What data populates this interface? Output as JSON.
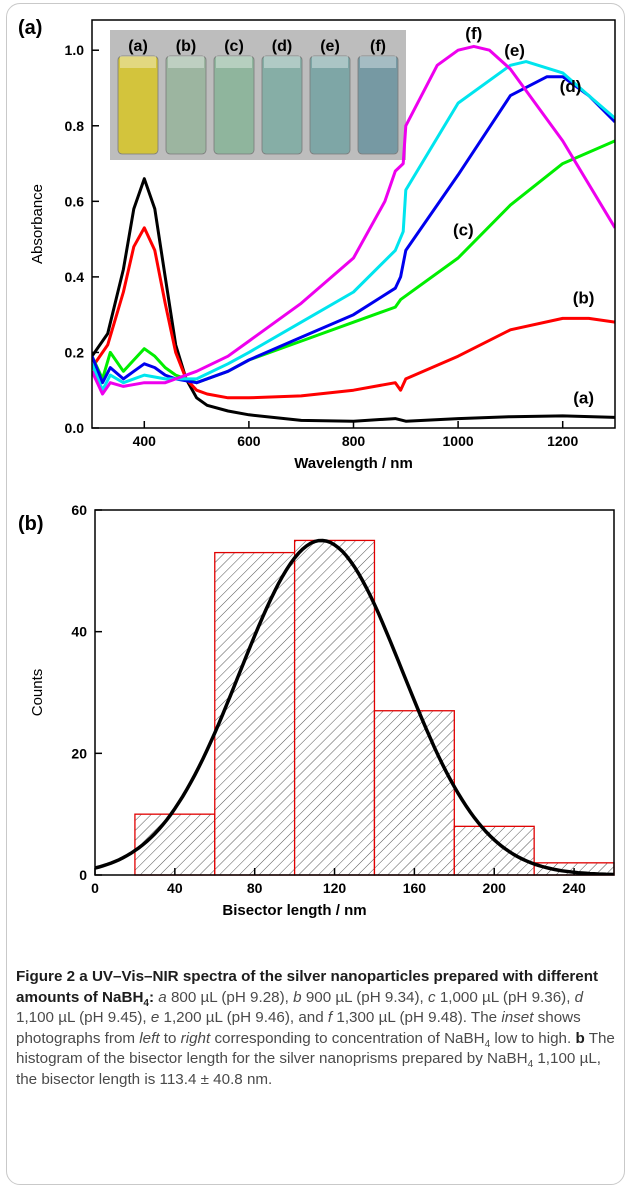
{
  "chart_data": [
    {
      "type": "line",
      "panel_label": "(a)",
      "xlabel": "Wavelength / nm",
      "ylabel": "Absorbance",
      "xlim": [
        300,
        1300
      ],
      "ylim": [
        0,
        1.08
      ],
      "xticks": [
        "400",
        "600",
        "800",
        "1000",
        "1200"
      ],
      "yticks": [
        "0.0",
        "0.2",
        "0.4",
        "0.6",
        "0.8",
        "1.0"
      ],
      "grid": false,
      "series": [
        {
          "name": "(a)",
          "color": "#000000",
          "label_x": 1240,
          "label_y": 0.065,
          "x": [
            300,
            330,
            360,
            380,
            400,
            420,
            440,
            460,
            480,
            500,
            520,
            560,
            600,
            700,
            800,
            880,
            900,
            1000,
            1100,
            1200,
            1300
          ],
          "y": [
            0.19,
            0.25,
            0.42,
            0.58,
            0.66,
            0.58,
            0.4,
            0.22,
            0.13,
            0.08,
            0.06,
            0.045,
            0.035,
            0.02,
            0.018,
            0.025,
            0.018,
            0.025,
            0.03,
            0.032,
            0.028
          ]
        },
        {
          "name": "(b)",
          "color": "#ff0000",
          "label_x": 1240,
          "label_y": 0.33,
          "x": [
            300,
            330,
            360,
            380,
            400,
            420,
            440,
            460,
            480,
            500,
            520,
            560,
            600,
            700,
            800,
            880,
            890,
            900,
            1000,
            1100,
            1200,
            1250,
            1300
          ],
          "y": [
            0.16,
            0.22,
            0.36,
            0.48,
            0.53,
            0.47,
            0.33,
            0.2,
            0.13,
            0.1,
            0.09,
            0.08,
            0.08,
            0.085,
            0.1,
            0.12,
            0.1,
            0.13,
            0.19,
            0.26,
            0.29,
            0.29,
            0.28
          ]
        },
        {
          "name": "(c)",
          "color": "#00ee00",
          "label_x": 1010,
          "label_y": 0.51,
          "x": [
            300,
            320,
            335,
            360,
            380,
            400,
            420,
            440,
            460,
            500,
            560,
            600,
            700,
            800,
            880,
            890,
            900,
            1000,
            1100,
            1200,
            1300
          ],
          "y": [
            0.19,
            0.13,
            0.2,
            0.15,
            0.18,
            0.21,
            0.19,
            0.16,
            0.14,
            0.12,
            0.15,
            0.18,
            0.23,
            0.28,
            0.32,
            0.34,
            0.35,
            0.45,
            0.59,
            0.7,
            0.76
          ]
        },
        {
          "name": "(d)",
          "color": "#0000ee",
          "label_x": 1215,
          "label_y": 0.89,
          "x": [
            300,
            320,
            335,
            360,
            380,
            400,
            420,
            440,
            460,
            500,
            560,
            600,
            700,
            800,
            880,
            890,
            900,
            1000,
            1100,
            1170,
            1200,
            1250,
            1300
          ],
          "y": [
            0.19,
            0.12,
            0.16,
            0.13,
            0.15,
            0.17,
            0.16,
            0.14,
            0.13,
            0.12,
            0.15,
            0.18,
            0.24,
            0.3,
            0.37,
            0.4,
            0.47,
            0.67,
            0.88,
            0.93,
            0.93,
            0.88,
            0.81
          ]
        },
        {
          "name": "(e)",
          "color": "#00e5ee",
          "label_x": 1108,
          "label_y": 0.985,
          "x": [
            300,
            320,
            335,
            360,
            400,
            440,
            460,
            500,
            560,
            600,
            700,
            800,
            880,
            895,
            900,
            1000,
            1100,
            1130,
            1200,
            1250,
            1300
          ],
          "y": [
            0.17,
            0.1,
            0.14,
            0.12,
            0.14,
            0.13,
            0.13,
            0.13,
            0.17,
            0.2,
            0.28,
            0.36,
            0.47,
            0.52,
            0.63,
            0.86,
            0.96,
            0.97,
            0.94,
            0.88,
            0.82
          ]
        },
        {
          "name": "(f)",
          "color": "#ee00ee",
          "label_x": 1030,
          "label_y": 1.03,
          "x": [
            300,
            320,
            335,
            360,
            400,
            440,
            460,
            500,
            560,
            600,
            700,
            800,
            860,
            880,
            895,
            900,
            960,
            1000,
            1030,
            1060,
            1100,
            1200,
            1300
          ],
          "y": [
            0.15,
            0.09,
            0.12,
            0.11,
            0.12,
            0.12,
            0.13,
            0.15,
            0.19,
            0.23,
            0.33,
            0.45,
            0.6,
            0.68,
            0.7,
            0.8,
            0.96,
            1.0,
            1.01,
            1.0,
            0.95,
            0.76,
            0.53
          ]
        }
      ],
      "inset": {
        "labels": [
          "(a)",
          "(b)",
          "(c)",
          "(d)",
          "(e)",
          "(f)"
        ],
        "vial_colors": [
          "#d3c43c",
          "#9cb5a0",
          "#8fb59d",
          "#86aea6",
          "#7ea6a6",
          "#7699a3"
        ]
      }
    },
    {
      "type": "bar",
      "panel_label": "(b)",
      "xlabel": "Bisector length / nm",
      "ylabel": "Counts",
      "xlim": [
        0,
        260
      ],
      "ylim": [
        0,
        60
      ],
      "xticks": [
        "0",
        "40",
        "80",
        "120",
        "160",
        "200",
        "240"
      ],
      "yticks": [
        "0",
        "20",
        "40",
        "60"
      ],
      "bins": [
        [
          20,
          60
        ],
        [
          60,
          100
        ],
        [
          100,
          140
        ],
        [
          140,
          180
        ],
        [
          180,
          220
        ],
        [
          220,
          260
        ]
      ],
      "values": [
        10,
        53,
        55,
        27,
        8,
        2
      ],
      "fit": {
        "type": "gaussian",
        "mean": 113.4,
        "sd": 40.8,
        "peak": 55
      }
    }
  ],
  "caption": {
    "title_a": "Figure 2 a UV–Vis–NIR spectra of the silver nanoparticles prepared with different amounts of NaBH",
    "title_sub": "4",
    "title_b": ":",
    "l_a": "a",
    "t_a": " 800 µL (pH 9.28),",
    "l_b": "b",
    "t_b": " 900 µL (pH 9.34),",
    "l_c": "c",
    "t_c": " 1,000 µL (pH 9.36),",
    "l_d": "d",
    "t_d": " 1,100 µL (pH 9.45),",
    "l_e": "e",
    "t_e": " 1,200 µL (pH 9.46), and",
    "l_f": "f",
    "t_f": " 1,300 µL (pH 9.48). The",
    "inset_word": "inset",
    "t_inset": " shows photographs from",
    "left_word": "left",
    "t_to": " to",
    "right_word": "right",
    "t_corr": " corresponding to concentration of NaBH",
    "sub2": "4",
    "t_low": " low to high.",
    "b_bold": "b",
    "t_hist": " The histogram of the bisector length for the silver nanoprisms prepared by NaBH",
    "sub3": "4",
    "t_end": " 1,100 µL, the bisector length is 113.4 ± 40.8 nm."
  }
}
